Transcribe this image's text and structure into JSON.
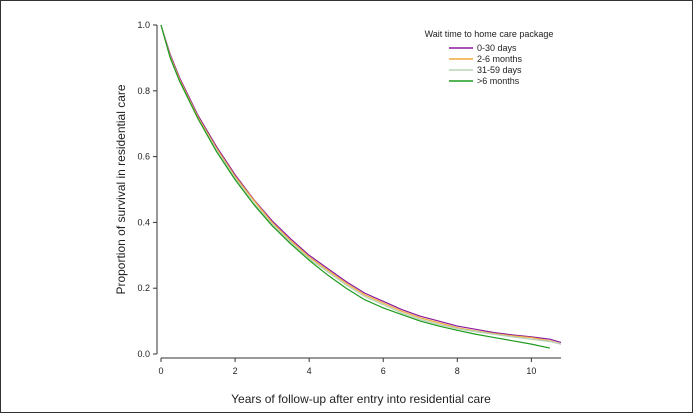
{
  "chart_data": {
    "type": "line",
    "title": "",
    "xlabel": "Years of follow-up after entry into residential care",
    "ylabel": "Proportion of survival in residential care",
    "xlim": [
      0,
      10.8
    ],
    "ylim": [
      0,
      1.0
    ],
    "x_ticks": [
      0,
      2,
      4,
      6,
      8,
      10
    ],
    "y_ticks": [
      0.0,
      0.2,
      0.4,
      0.6,
      0.8,
      1.0
    ],
    "x_tick_labels": [
      "0",
      "2",
      "4",
      "6",
      "8",
      "10"
    ],
    "y_tick_labels": [
      "0.0",
      "0.2",
      "0.4",
      "0.6",
      "0.8",
      "1.0"
    ],
    "grid": false,
    "legend": {
      "title": "Wait time to home care package",
      "position": "top-right"
    },
    "series": [
      {
        "name": "0-30 days",
        "color": "#8b1a9c",
        "x": [
          0,
          0.25,
          0.5,
          1,
          1.5,
          2,
          2.5,
          3,
          3.5,
          4,
          4.5,
          5,
          5.5,
          6,
          6.5,
          7,
          7.5,
          8,
          8.5,
          9,
          9.5,
          10,
          10.5,
          10.8
        ],
        "y": [
          1.0,
          0.91,
          0.84,
          0.725,
          0.63,
          0.545,
          0.47,
          0.405,
          0.35,
          0.3,
          0.26,
          0.22,
          0.185,
          0.16,
          0.135,
          0.115,
          0.1,
          0.085,
          0.075,
          0.065,
          0.058,
          0.052,
          0.045,
          0.035
        ]
      },
      {
        "name": "2-6 months",
        "color": "#f2a93b",
        "x": [
          0,
          0.25,
          0.5,
          1,
          1.5,
          2,
          2.5,
          3,
          3.5,
          4,
          4.5,
          5,
          5.5,
          6,
          6.5,
          7,
          7.5,
          8,
          8.5,
          9,
          9.5,
          10,
          10.5,
          10.8
        ],
        "y": [
          1.0,
          0.905,
          0.835,
          0.72,
          0.625,
          0.54,
          0.468,
          0.4,
          0.345,
          0.295,
          0.255,
          0.215,
          0.18,
          0.155,
          0.13,
          0.11,
          0.095,
          0.08,
          0.07,
          0.062,
          0.055,
          0.05,
          0.04,
          0.03
        ]
      },
      {
        "name": "31-59 days",
        "color": "#b9d3b9",
        "x": [
          0,
          0.25,
          0.5,
          1,
          1.5,
          2,
          2.5,
          3,
          3.5,
          4,
          4.5,
          5,
          5.5,
          6,
          6.5,
          7,
          7.5,
          8,
          8.5,
          9,
          9.5,
          10,
          10.5,
          10.8
        ],
        "y": [
          1.0,
          0.9,
          0.83,
          0.715,
          0.62,
          0.535,
          0.46,
          0.395,
          0.34,
          0.29,
          0.25,
          0.21,
          0.175,
          0.15,
          0.125,
          0.105,
          0.09,
          0.077,
          0.068,
          0.06,
          0.052,
          0.045,
          0.038,
          0.03
        ]
      },
      {
        "name": ">6 months",
        "color": "#1e9a1e",
        "x": [
          0,
          0.25,
          0.5,
          1,
          1.5,
          2,
          2.5,
          3,
          3.5,
          4,
          4.5,
          5,
          5.5,
          6,
          6.5,
          7,
          7.5,
          8,
          8.5,
          9,
          9.5,
          10,
          10.5
        ],
        "y": [
          1.0,
          0.9,
          0.83,
          0.715,
          0.615,
          0.53,
          0.455,
          0.39,
          0.335,
          0.285,
          0.24,
          0.2,
          0.165,
          0.14,
          0.12,
          0.1,
          0.085,
          0.072,
          0.06,
          0.05,
          0.04,
          0.03,
          0.018
        ]
      }
    ]
  }
}
